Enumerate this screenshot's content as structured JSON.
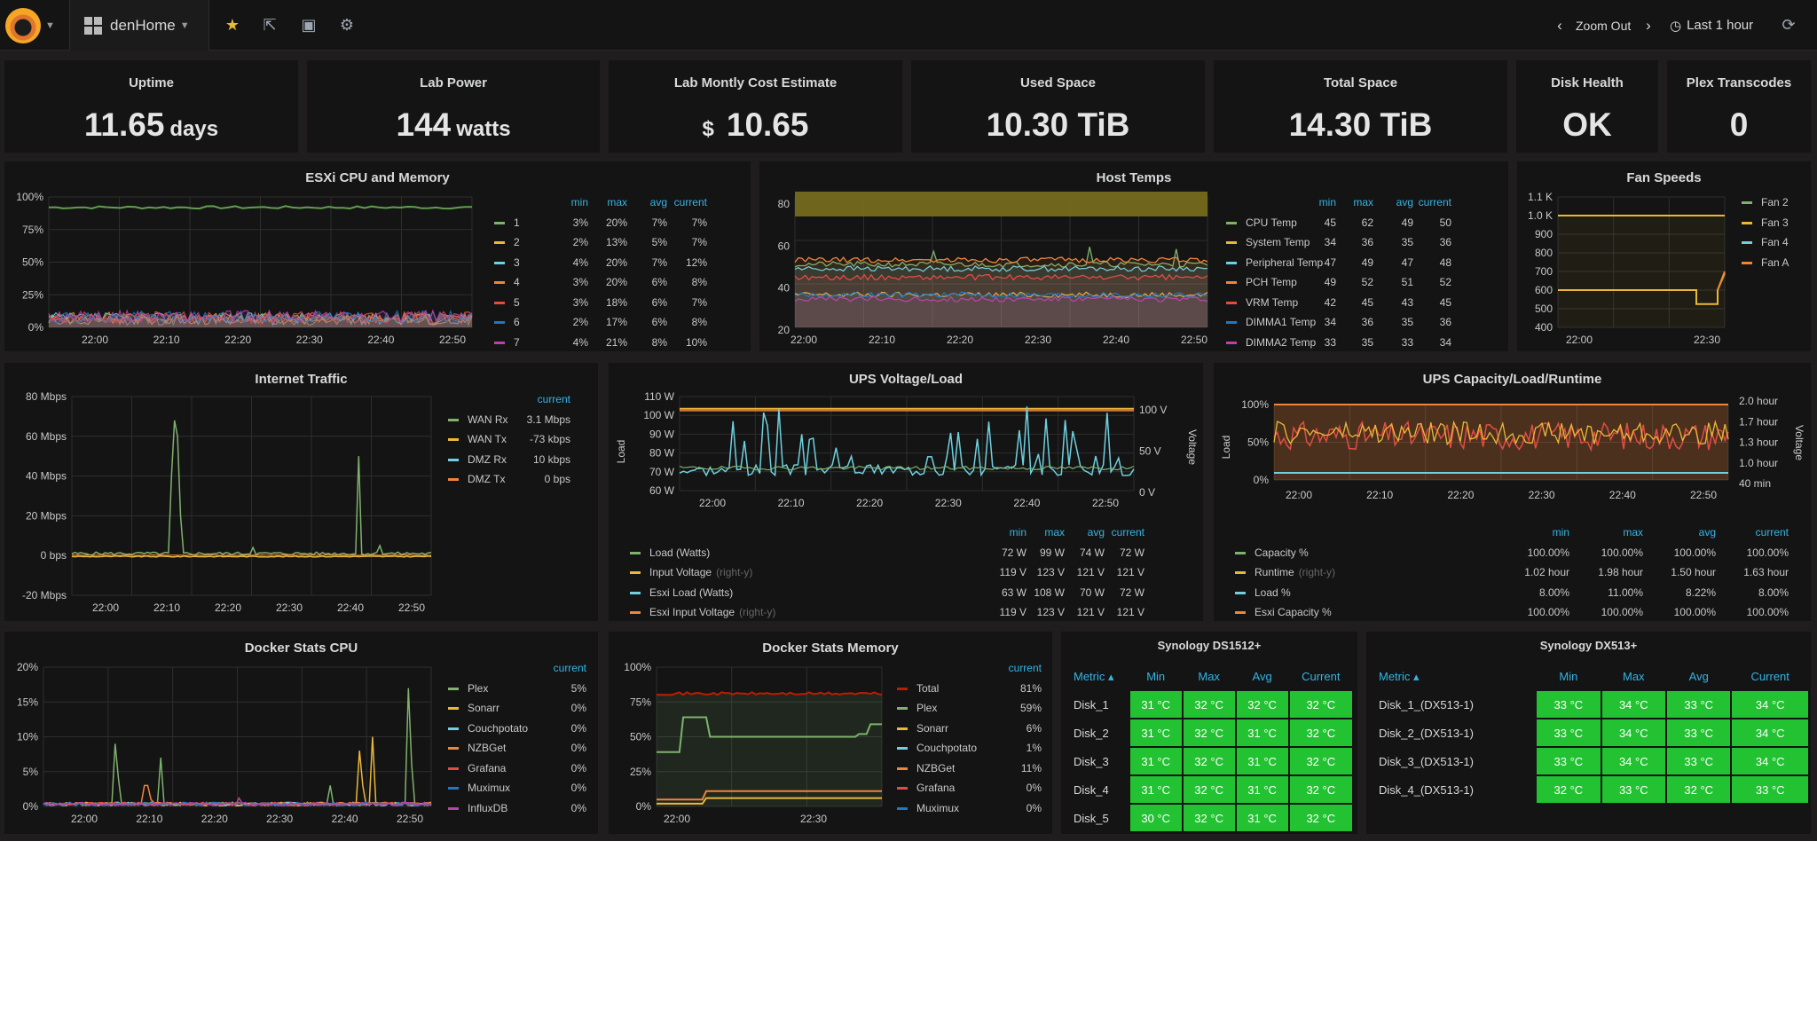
{
  "topbar": {
    "dashboard_name": "denHome",
    "zoom_out": "Zoom Out",
    "time_range": "Last 1 hour"
  },
  "stats": [
    {
      "title": "Uptime",
      "value": "11.65",
      "unit": "days",
      "prefix": ""
    },
    {
      "title": "Lab Power",
      "value": "144",
      "unit": "watts",
      "prefix": ""
    },
    {
      "title": "Lab Montly Cost Estimate",
      "value": "10.65",
      "unit": "",
      "prefix": "$"
    },
    {
      "title": "Used Space",
      "value": "10.30 TiB",
      "unit": "",
      "prefix": ""
    },
    {
      "title": "Total Space",
      "value": "14.30 TiB",
      "unit": "",
      "prefix": ""
    },
    {
      "title": "Disk Health",
      "value": "OK",
      "unit": "",
      "prefix": ""
    },
    {
      "title": "Plex Transcodes",
      "value": "0",
      "unit": "",
      "prefix": ""
    }
  ],
  "chart_data": [
    {
      "id": "esxi",
      "type": "line",
      "title": "ESXi CPU and Memory",
      "x": [
        "22:00",
        "22:10",
        "22:20",
        "22:30",
        "22:40",
        "22:50"
      ],
      "y_ticks": [
        "100%",
        "75%",
        "50%",
        "25%",
        "0%"
      ],
      "ylim": [
        0,
        100
      ],
      "legend_header": [
        "min",
        "max",
        "avg",
        "current"
      ],
      "series": [
        {
          "name": "1",
          "color": "#7eb26d",
          "min": "3%",
          "max": "20%",
          "avg": "7%",
          "current": "7%"
        },
        {
          "name": "2",
          "color": "#eab839",
          "min": "2%",
          "max": "13%",
          "avg": "5%",
          "current": "7%"
        },
        {
          "name": "3",
          "color": "#6ed0e0",
          "min": "4%",
          "max": "20%",
          "avg": "7%",
          "current": "12%"
        },
        {
          "name": "4",
          "color": "#ef843c",
          "min": "3%",
          "max": "20%",
          "avg": "6%",
          "current": "8%"
        },
        {
          "name": "5",
          "color": "#e24d42",
          "min": "3%",
          "max": "18%",
          "avg": "6%",
          "current": "7%"
        },
        {
          "name": "6",
          "color": "#1f78c1",
          "min": "2%",
          "max": "17%",
          "avg": "6%",
          "current": "8%"
        },
        {
          "name": "7",
          "color": "#ba43a9",
          "min": "4%",
          "max": "21%",
          "avg": "8%",
          "current": "10%"
        }
      ],
      "memory_level": 92
    },
    {
      "id": "hosttemps",
      "type": "line",
      "title": "Host Temps",
      "x": [
        "22:00",
        "22:10",
        "22:20",
        "22:30",
        "22:40",
        "22:50"
      ],
      "y_ticks": [
        "80",
        "60",
        "40",
        "20"
      ],
      "ylim": [
        20,
        80
      ],
      "legend_header": [
        "min",
        "max",
        "avg",
        "current"
      ],
      "series": [
        {
          "name": "CPU Temp",
          "color": "#7eb26d",
          "min": "45",
          "max": "62",
          "avg": "49",
          "current": "50"
        },
        {
          "name": "System Temp",
          "color": "#eab839",
          "min": "34",
          "max": "36",
          "avg": "35",
          "current": "36"
        },
        {
          "name": "Peripheral Temp",
          "color": "#6ed0e0",
          "min": "47",
          "max": "49",
          "avg": "47",
          "current": "48"
        },
        {
          "name": "PCH Temp",
          "color": "#ef843c",
          "min": "49",
          "max": "52",
          "avg": "51",
          "current": "52"
        },
        {
          "name": "VRM Temp",
          "color": "#e24d42",
          "min": "42",
          "max": "45",
          "avg": "43",
          "current": "45"
        },
        {
          "name": "DIMMA1 Temp",
          "color": "#1f78c1",
          "min": "34",
          "max": "36",
          "avg": "35",
          "current": "36"
        },
        {
          "name": "DIMMA2 Temp",
          "color": "#ba43a9",
          "min": "33",
          "max": "35",
          "avg": "33",
          "current": "34"
        }
      ]
    },
    {
      "id": "fans",
      "type": "line",
      "title": "Fan Speeds",
      "x": [
        "22:00",
        "22:30"
      ],
      "y_ticks": [
        "1.1 K",
        "1.0 K",
        "900",
        "800",
        "700",
        "600",
        "500",
        "400"
      ],
      "ylim": [
        400,
        1100
      ],
      "series": [
        {
          "name": "Fan 2",
          "color": "#7eb26d"
        },
        {
          "name": "Fan 3",
          "color": "#eab839"
        },
        {
          "name": "Fan 4",
          "color": "#6ed0e0"
        },
        {
          "name": "Fan A",
          "color": "#ef843c"
        }
      ]
    },
    {
      "id": "internet",
      "type": "line",
      "title": "Internet Traffic",
      "x": [
        "22:00",
        "22:10",
        "22:20",
        "22:30",
        "22:40",
        "22:50"
      ],
      "y_ticks": [
        "80 Mbps",
        "60 Mbps",
        "40 Mbps",
        "20 Mbps",
        "0 bps",
        "-20 Mbps"
      ],
      "ylim": [
        -20,
        80
      ],
      "legend_header": [
        "current"
      ],
      "series": [
        {
          "name": "WAN Rx",
          "color": "#7eb26d",
          "current": "3.1 Mbps"
        },
        {
          "name": "WAN Tx",
          "color": "#eab839",
          "current": "-73 kbps"
        },
        {
          "name": "DMZ Rx",
          "color": "#6ed0e0",
          "current": "10 kbps"
        },
        {
          "name": "DMZ Tx",
          "color": "#ef843c",
          "current": "0 bps"
        }
      ]
    },
    {
      "id": "ups",
      "type": "line",
      "title": "UPS Voltage/Load",
      "x": [
        "22:00",
        "22:10",
        "22:20",
        "22:30",
        "22:40",
        "22:50"
      ],
      "y_ticks": [
        "110 W",
        "100 W",
        "90 W",
        "80 W",
        "70 W",
        "60 W"
      ],
      "y2_ticks": [
        "100 V",
        "50 V",
        "0 V"
      ],
      "ylabel": "Load",
      "y2label": "Voltage",
      "legend_header": [
        "min",
        "max",
        "avg",
        "current"
      ],
      "series": [
        {
          "name": "Load (Watts)",
          "suffix": "",
          "color": "#7eb26d",
          "min": "72 W",
          "max": "99 W",
          "avg": "74 W",
          "current": "72 W"
        },
        {
          "name": "Input Voltage",
          "suffix": "(right-y)",
          "color": "#eab839",
          "min": "119 V",
          "max": "123 V",
          "avg": "121 V",
          "current": "121 V"
        },
        {
          "name": "Esxi Load (Watts)",
          "suffix": "",
          "color": "#6ed0e0",
          "min": "63 W",
          "max": "108 W",
          "avg": "70 W",
          "current": "72 W"
        },
        {
          "name": "Esxi Input Voltage",
          "suffix": "(right-y)",
          "color": "#ef843c",
          "min": "119 V",
          "max": "123 V",
          "avg": "121 V",
          "current": "121 V"
        }
      ]
    },
    {
      "id": "upscap",
      "type": "line",
      "title": "UPS Capacity/Load/Runtime",
      "x": [
        "22:00",
        "22:10",
        "22:20",
        "22:30",
        "22:40",
        "22:50"
      ],
      "y_ticks": [
        "100%",
        "50%",
        "0%"
      ],
      "y2_ticks": [
        "2.0 hour",
        "1.7 hour",
        "1.3 hour",
        "1.0 hour",
        "40 min"
      ],
      "ylabel": "Load",
      "y2label": "Voltage",
      "legend_header": [
        "min",
        "max",
        "avg",
        "current"
      ],
      "series": [
        {
          "name": "Capacity %",
          "suffix": "",
          "color": "#7eb26d",
          "min": "100.00%",
          "max": "100.00%",
          "avg": "100.00%",
          "current": "100.00%"
        },
        {
          "name": "Runtime",
          "suffix": "(right-y)",
          "color": "#eab839",
          "min": "1.02 hour",
          "max": "1.98 hour",
          "avg": "1.50 hour",
          "current": "1.63 hour"
        },
        {
          "name": "Load %",
          "suffix": "",
          "color": "#6ed0e0",
          "min": "8.00%",
          "max": "11.00%",
          "avg": "8.22%",
          "current": "8.00%"
        },
        {
          "name": "Esxi Capacity %",
          "suffix": "",
          "color": "#ef843c",
          "min": "100.00%",
          "max": "100.00%",
          "avg": "100.00%",
          "current": "100.00%"
        }
      ]
    },
    {
      "id": "dockercpu",
      "type": "line",
      "title": "Docker Stats CPU",
      "x": [
        "22:00",
        "22:10",
        "22:20",
        "22:30",
        "22:40",
        "22:50"
      ],
      "y_ticks": [
        "20%",
        "15%",
        "10%",
        "5%",
        "0%"
      ],
      "ylim": [
        0,
        20
      ],
      "legend_header": [
        "current"
      ],
      "series": [
        {
          "name": "Plex",
          "color": "#7eb26d",
          "current": "5%"
        },
        {
          "name": "Sonarr",
          "color": "#eab839",
          "current": "0%"
        },
        {
          "name": "Couchpotato",
          "color": "#6ed0e0",
          "current": "0%"
        },
        {
          "name": "NZBGet",
          "color": "#ef843c",
          "current": "0%"
        },
        {
          "name": "Grafana",
          "color": "#e24d42",
          "current": "0%"
        },
        {
          "name": "Muximux",
          "color": "#1f78c1",
          "current": "0%"
        },
        {
          "name": "InfluxDB",
          "color": "#ba43a9",
          "current": "0%"
        }
      ]
    },
    {
      "id": "dockermem",
      "type": "line",
      "title": "Docker Stats Memory",
      "x": [
        "22:00",
        "22:30"
      ],
      "y_ticks": [
        "100%",
        "75%",
        "50%",
        "25%",
        "0%"
      ],
      "ylim": [
        0,
        100
      ],
      "legend_header": [
        "current"
      ],
      "series": [
        {
          "name": "Total",
          "color": "#bf1b00",
          "current": "81%"
        },
        {
          "name": "Plex",
          "color": "#7eb26d",
          "current": "59%"
        },
        {
          "name": "Sonarr",
          "color": "#eab839",
          "current": "6%"
        },
        {
          "name": "Couchpotato",
          "color": "#6ed0e0",
          "current": "1%"
        },
        {
          "name": "NZBGet",
          "color": "#ef843c",
          "current": "11%"
        },
        {
          "name": "Grafana",
          "color": "#e24d42",
          "current": "0%"
        },
        {
          "name": "Muximux",
          "color": "#1f78c1",
          "current": "0%"
        }
      ]
    }
  ],
  "syn1512": {
    "title": "Synology DS1512+",
    "headers": [
      "Metric",
      "Min",
      "Max",
      "Avg",
      "Current"
    ],
    "rows": [
      [
        "Disk_1",
        "31 °C",
        "32 °C",
        "32 °C",
        "32 °C"
      ],
      [
        "Disk_2",
        "31 °C",
        "32 °C",
        "31 °C",
        "32 °C"
      ],
      [
        "Disk_3",
        "31 °C",
        "32 °C",
        "31 °C",
        "32 °C"
      ],
      [
        "Disk_4",
        "31 °C",
        "32 °C",
        "31 °C",
        "32 °C"
      ],
      [
        "Disk_5",
        "30 °C",
        "32 °C",
        "31 °C",
        "32 °C"
      ]
    ]
  },
  "syn513": {
    "title": "Synology DX513+",
    "headers": [
      "Metric",
      "Min",
      "Max",
      "Avg",
      "Current"
    ],
    "rows": [
      [
        "Disk_1_(DX513-1)",
        "33 °C",
        "34 °C",
        "33 °C",
        "34 °C"
      ],
      [
        "Disk_2_(DX513-1)",
        "33 °C",
        "34 °C",
        "33 °C",
        "34 °C"
      ],
      [
        "Disk_3_(DX513-1)",
        "33 °C",
        "34 °C",
        "33 °C",
        "34 °C"
      ],
      [
        "Disk_4_(DX513-1)",
        "32 °C",
        "33 °C",
        "32 °C",
        "33 °C"
      ]
    ]
  },
  "colors": {
    "ok_cell": "#23c232",
    "accent": "#33b5e5",
    "panel": "#141414"
  }
}
